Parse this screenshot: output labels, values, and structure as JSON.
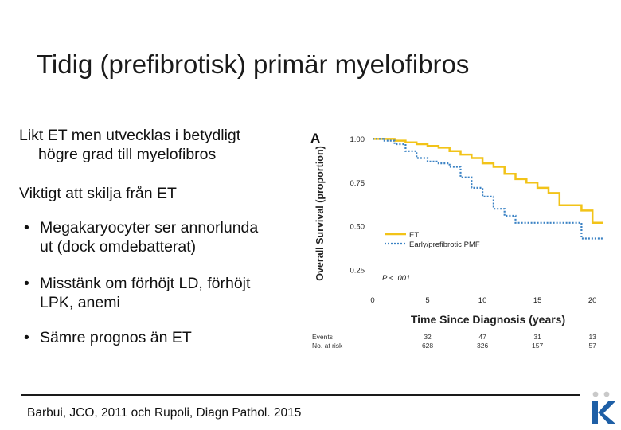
{
  "slide": {
    "title": "Tidig (prefibrotisk) primär myelofibros",
    "paragraphs": [
      {
        "line1": "Likt ET men utvecklas i betydligt",
        "line2": "högre grad till myelofibros"
      },
      {
        "line1": "Viktigt att skilja från ET",
        "line2": ""
      }
    ],
    "bullets": [
      {
        "symbol": "•",
        "line1": "Megakaryocyter ser annorlunda",
        "line2": "ut (dock omdebatterat)"
      },
      {
        "symbol": "•",
        "line1": "Misstänk om förhöjt LD, förhöjt",
        "line2": "LPK, anemi"
      },
      {
        "symbol": "•",
        "line1": "Sämre prognos än ET",
        "line2": ""
      }
    ],
    "citation": "Barbui, JCO, 2011 och Rupoli, Diagn Pathol. 2015",
    "colors": {
      "et": "#f2c318",
      "pmf": "#3b82c4",
      "logo": "#1e5fa6",
      "text": "#111111"
    }
  },
  "chart_data": {
    "type": "line",
    "panel_label": "A",
    "ylabel": "Overall Survival (proportion)",
    "xlabel": "Time Since Diagnosis (years)",
    "xlim": [
      0,
      21
    ],
    "ylim": [
      0.2,
      1.02
    ],
    "yticks": [
      1.0,
      0.75,
      0.5,
      0.25
    ],
    "ytick_labels": [
      "1.00",
      "0.75",
      "0.50",
      "0.25"
    ],
    "xticks": [
      0,
      5,
      10,
      15,
      20
    ],
    "xtick_labels": [
      "0",
      "5",
      "10",
      "15",
      "20"
    ],
    "pvalue": "P < .001",
    "legend_position": "lower-left",
    "series": [
      {
        "name": "ET",
        "color": "#f2c318",
        "style": "solid",
        "x": [
          0,
          1,
          2,
          3,
          4,
          5,
          6,
          7,
          8,
          9,
          10,
          11,
          12,
          13,
          14,
          15,
          16,
          17,
          18,
          19,
          20,
          21
        ],
        "y": [
          1.0,
          1.0,
          0.99,
          0.98,
          0.97,
          0.96,
          0.95,
          0.93,
          0.91,
          0.89,
          0.86,
          0.84,
          0.8,
          0.77,
          0.75,
          0.72,
          0.69,
          0.62,
          0.62,
          0.59,
          0.52,
          0.52
        ]
      },
      {
        "name": "Early/prefibrotic PMF",
        "color": "#3b82c4",
        "style": "dotted",
        "x": [
          0,
          1,
          2,
          3,
          4,
          5,
          6,
          7,
          8,
          9,
          10,
          11,
          12,
          13,
          14,
          15,
          16,
          17,
          18,
          19,
          20,
          21
        ],
        "y": [
          1.0,
          0.99,
          0.97,
          0.93,
          0.89,
          0.87,
          0.86,
          0.84,
          0.78,
          0.72,
          0.67,
          0.6,
          0.56,
          0.52,
          0.52,
          0.52,
          0.52,
          0.52,
          0.52,
          0.43,
          0.43,
          0.43
        ]
      }
    ],
    "risk_table": {
      "row_labels": [
        "Events",
        "No. at risk"
      ],
      "columns": [
        {
          "x": 5,
          "events": "32",
          "at_risk": "628"
        },
        {
          "x": 10,
          "events": "47",
          "at_risk": "326"
        },
        {
          "x": 15,
          "events": "31",
          "at_risk": "157"
        },
        {
          "x": 20,
          "events": "13",
          "at_risk": "57"
        }
      ]
    }
  }
}
